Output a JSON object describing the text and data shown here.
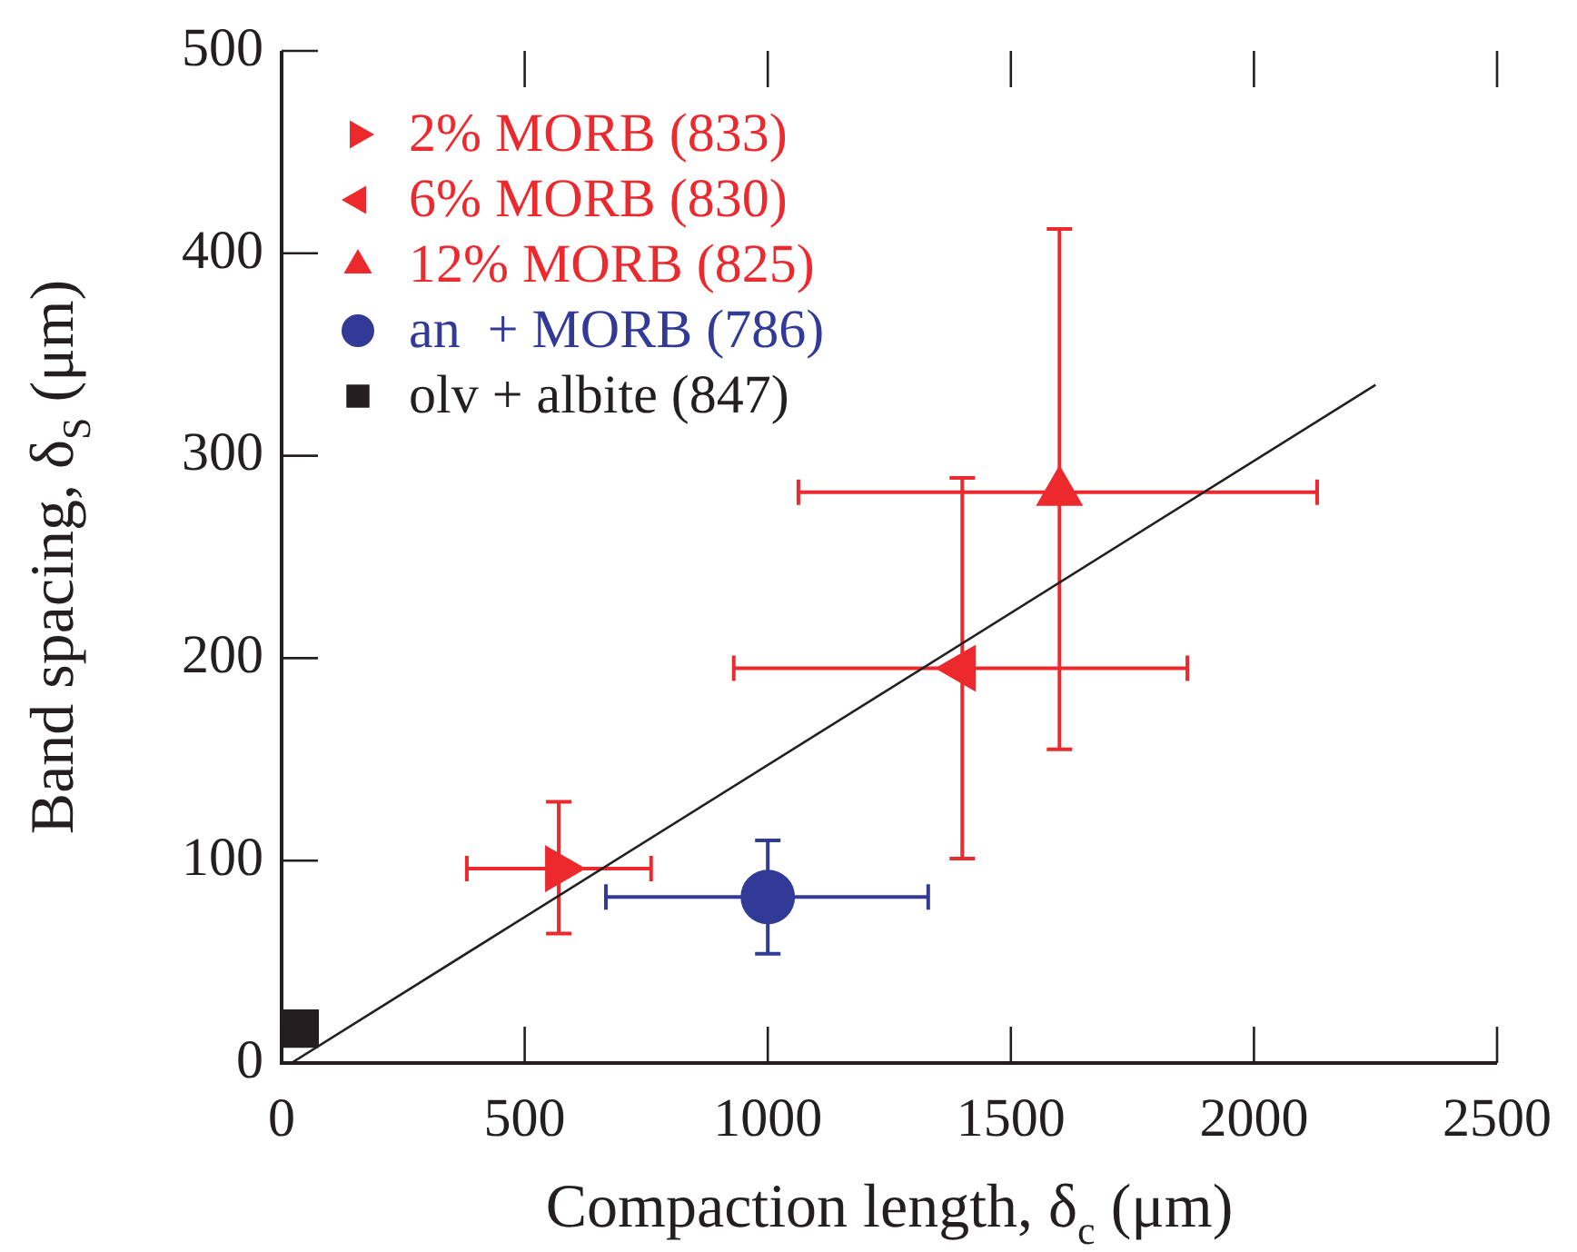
{
  "chart_data": {
    "type": "scatter",
    "xlabel": "Compaction length, δ$_{c}$ (μm)",
    "ylabel": "Band spacing, δ$_{S}$ (μm)",
    "xlim": [
      0,
      2500
    ],
    "xticks": [
      0,
      500,
      1000,
      1500,
      2000,
      2500
    ],
    "ylim": [
      0,
      500
    ],
    "yticks": [
      0,
      100,
      200,
      300,
      400,
      500
    ],
    "grid": false,
    "legend": "top left",
    "series": [
      {
        "name": "2% MORB (833)",
        "color": "#ec2a2e",
        "marker": "triangle-right",
        "x": [
          570
        ],
        "values": [
          96
        ],
        "errors": [
          [
            64,
            129
          ]
        ],
        "xerrors": [
          [
            381,
            760
          ]
        ]
      },
      {
        "name": "6% MORB (830)",
        "color": "#ec2a2e",
        "marker": "triangle-left",
        "x": [
          1400
        ],
        "values": [
          195
        ],
        "errors": [
          [
            101,
            289
          ]
        ],
        "xerrors": [
          [
            930,
            1863
          ]
        ]
      },
      {
        "name": "12% MORB (825)",
        "color": "#ec2a2e",
        "marker": "triangle",
        "x": [
          1600
        ],
        "values": [
          282
        ],
        "errors": [
          [
            155,
            412
          ]
        ],
        "xerrors": [
          [
            1063,
            2130
          ]
        ]
      },
      {
        "name": "an  + MORB (786)",
        "color": "#313b97",
        "marker": "circle",
        "x": [
          1000
        ],
        "values": [
          82
        ],
        "errors": [
          [
            54,
            110
          ]
        ],
        "xerrors": [
          [
            667,
            1330
          ]
        ]
      },
      {
        "name": "olv + albite (847)",
        "color": "#231f20",
        "marker": "square",
        "x": [
          37
        ],
        "values": [
          17
        ]
      },
      {
        "type": "line",
        "color": "#231f20",
        "marker": "none",
        "x": [
          20,
          2250
        ],
        "values": [
          0,
          335
        ]
      }
    ]
  }
}
